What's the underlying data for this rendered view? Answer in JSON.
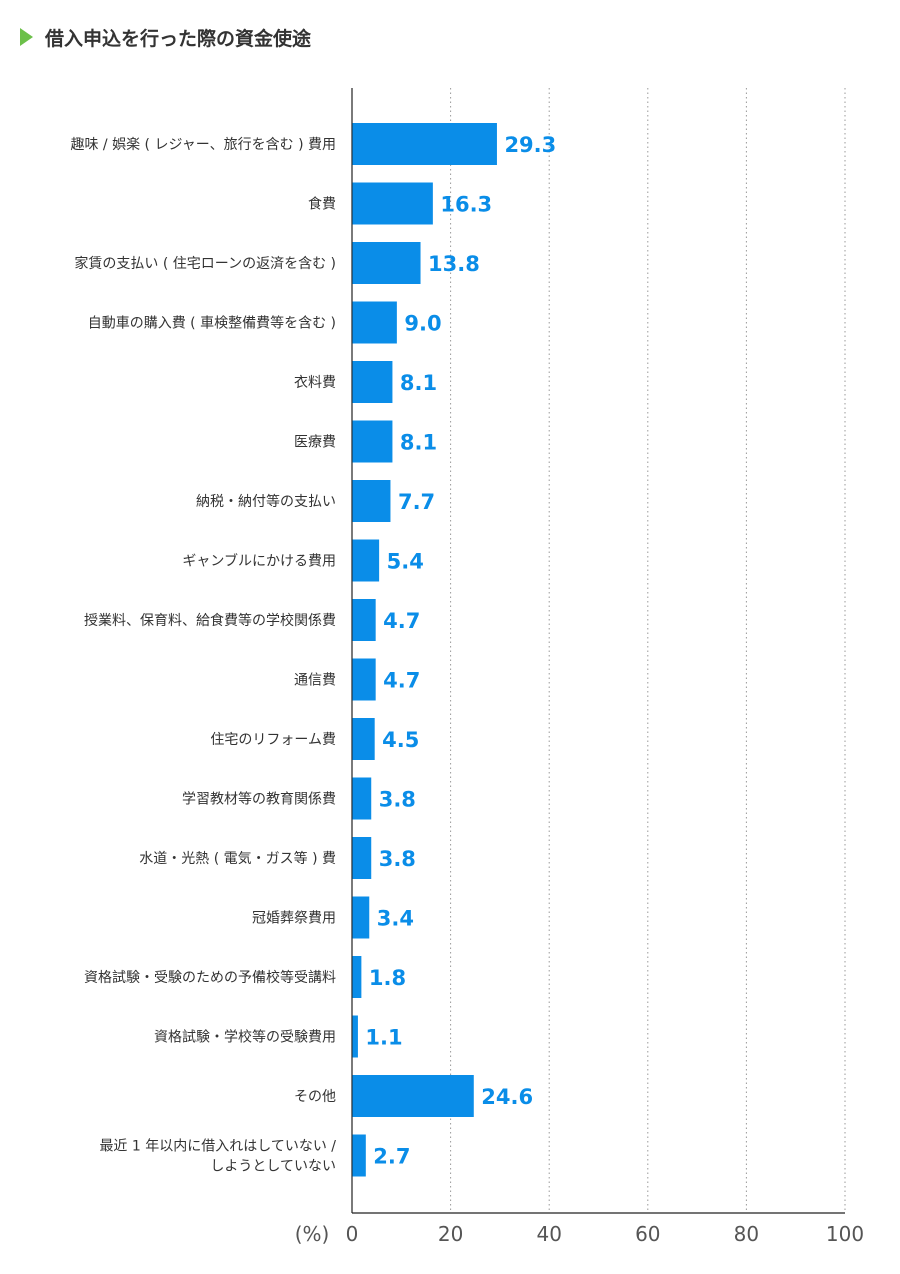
{
  "title": "借入申込を行った際の資金使途",
  "chart_data": {
    "type": "bar",
    "orientation": "horizontal",
    "categories": [
      [
        "趣味 / 娯楽 ( レジャー、旅行を含む ) 費用"
      ],
      [
        "食費"
      ],
      [
        "家賃の支払い ( 住宅ローンの返済を含む )"
      ],
      [
        "自動車の購入費 ( 車検整備費等を含む )"
      ],
      [
        "衣料費"
      ],
      [
        "医療費"
      ],
      [
        "納税・納付等の支払い"
      ],
      [
        "ギャンブルにかける費用"
      ],
      [
        "授業料、保育料、給食費等の学校関係費"
      ],
      [
        "通信費"
      ],
      [
        "住宅のリフォーム費"
      ],
      [
        "学習教材等の教育関係費"
      ],
      [
        "水道・光熱 ( 電気・ガス等 ) 費"
      ],
      [
        "冠婚葬祭費用"
      ],
      [
        "資格試験・受験のための予備校等受講料"
      ],
      [
        "資格試験・学校等の受験費用"
      ],
      [
        "その他"
      ],
      [
        "最近 1 年以内に借入れはしていない /",
        "しようとしていない"
      ]
    ],
    "values": [
      29.3,
      16.3,
      13.8,
      9.0,
      8.1,
      8.1,
      7.7,
      5.4,
      4.7,
      4.7,
      4.5,
      3.8,
      3.8,
      3.4,
      1.8,
      1.1,
      24.6,
      2.7
    ],
    "value_labels": [
      "29.3",
      "16.3",
      "13.8",
      "9.0",
      "8.1",
      "8.1",
      "7.7",
      "5.4",
      "4.7",
      "4.7",
      "4.5",
      "3.8",
      "3.8",
      "3.4",
      "1.8",
      "1.1",
      "24.6",
      "2.7"
    ],
    "xlabel": "(%)",
    "xlim": [
      0,
      100
    ],
    "xticks": [
      0,
      20,
      40,
      60,
      80,
      100
    ],
    "grid": "vertical dotted",
    "bar_color": "#0a8de8"
  }
}
